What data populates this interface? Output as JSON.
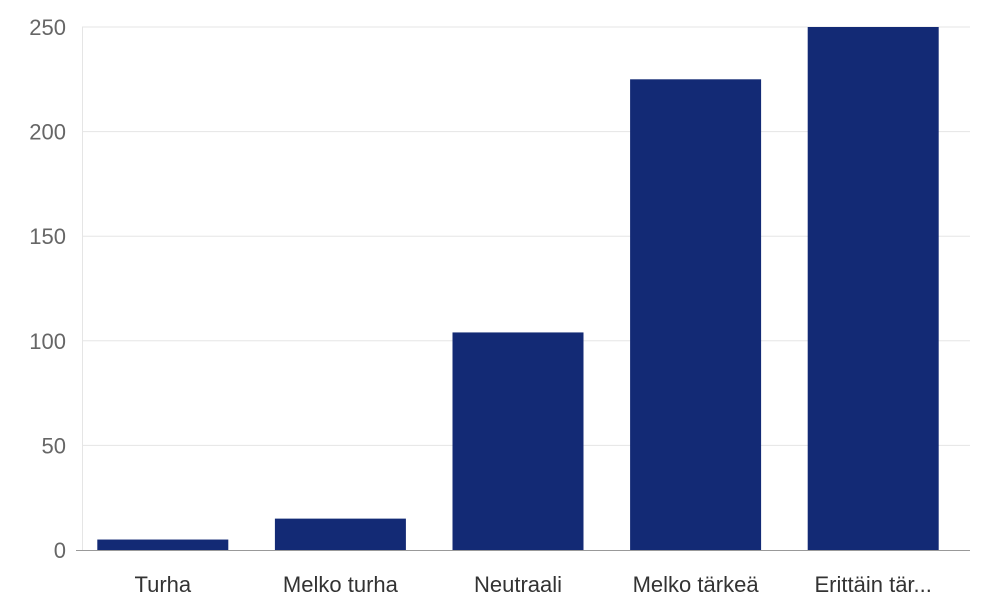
{
  "chart_data": {
    "type": "bar",
    "title": "",
    "xlabel": "",
    "ylabel": "",
    "categories": [
      "Turha",
      "Melko turha",
      "Neutraali",
      "Melko tärkeä",
      "Erittäin tär..."
    ],
    "values": [
      5,
      15,
      104,
      225,
      250
    ],
    "ylim": [
      0,
      250
    ],
    "yticks": [
      0,
      50,
      100,
      150,
      200,
      250
    ],
    "grid": true,
    "legend": "none",
    "colors": {
      "bar": "#132a75",
      "grid": "#e5e5e5",
      "axis": "#999999"
    }
  }
}
